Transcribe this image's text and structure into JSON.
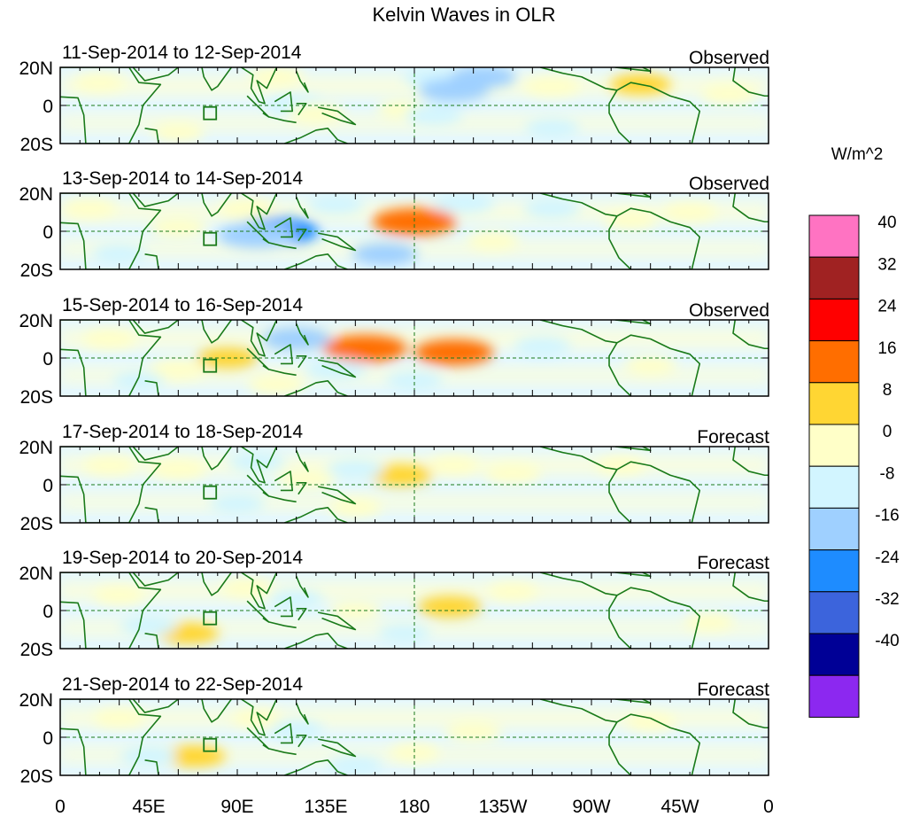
{
  "title": "Kelvin Waves in OLR",
  "units_label": "W/m^2",
  "x_tick_labels": [
    "0",
    "45E",
    "90E",
    "135E",
    "180",
    "135W",
    "90W",
    "45W",
    "0"
  ],
  "y_tick_labels": [
    "20N",
    "0",
    "20S"
  ],
  "panels": [
    {
      "date_range": "11-Sep-2014 to 12-Sep-2014",
      "kind": "Observed",
      "anomalies": [
        {
          "lon": 110,
          "lat": 15,
          "value": 5
        },
        {
          "lon": 120,
          "lat": 0,
          "value": -8
        },
        {
          "lon": 190,
          "lat": 15,
          "value": -8
        },
        {
          "lon": 200,
          "lat": 8,
          "value": -12
        },
        {
          "lon": 215,
          "lat": 15,
          "value": -10
        },
        {
          "lon": 250,
          "lat": 10,
          "value": 6
        },
        {
          "lon": 295,
          "lat": 11,
          "value": 8
        },
        {
          "lon": 175,
          "lat": -2,
          "value": 5
        },
        {
          "lon": 130,
          "lat": -4,
          "value": 6
        },
        {
          "lon": 190,
          "lat": -5,
          "value": -6
        },
        {
          "lon": 20,
          "lat": 12,
          "value": 4
        },
        {
          "lon": 60,
          "lat": -14,
          "value": 4
        },
        {
          "lon": 340,
          "lat": 6,
          "value": 6
        },
        {
          "lon": 250,
          "lat": -12,
          "value": -5
        }
      ]
    },
    {
      "date_range": "13-Sep-2014 to 14-Sep-2014",
      "kind": "Observed",
      "anomalies": [
        {
          "lon": 180,
          "lat": 5,
          "value": 18
        },
        {
          "lon": 110,
          "lat": 0,
          "value": -18
        },
        {
          "lon": 100,
          "lat": -2,
          "value": -16
        },
        {
          "lon": 140,
          "lat": 14,
          "value": -6
        },
        {
          "lon": 205,
          "lat": 15,
          "value": -8
        },
        {
          "lon": 165,
          "lat": -12,
          "value": -10
        },
        {
          "lon": 95,
          "lat": 12,
          "value": 6
        },
        {
          "lon": 60,
          "lat": 2,
          "value": 6
        },
        {
          "lon": 15,
          "lat": 12,
          "value": 5
        },
        {
          "lon": 250,
          "lat": 12,
          "value": -6
        },
        {
          "lon": 290,
          "lat": 6,
          "value": 5
        },
        {
          "lon": 320,
          "lat": 10,
          "value": 5
        },
        {
          "lon": 220,
          "lat": -5,
          "value": 4
        },
        {
          "lon": 30,
          "lat": -12,
          "value": -5
        }
      ]
    },
    {
      "date_range": "15-Sep-2014 to 16-Sep-2014",
      "kind": "Observed",
      "anomalies": [
        {
          "lon": 155,
          "lat": 5,
          "value": 18
        },
        {
          "lon": 200,
          "lat": 3,
          "value": 16
        },
        {
          "lon": 120,
          "lat": 10,
          "value": -12
        },
        {
          "lon": 140,
          "lat": -6,
          "value": -8
        },
        {
          "lon": 85,
          "lat": 0,
          "value": 8
        },
        {
          "lon": 60,
          "lat": -6,
          "value": 6
        },
        {
          "lon": 110,
          "lat": -14,
          "value": 6
        },
        {
          "lon": 25,
          "lat": 10,
          "value": 5
        },
        {
          "lon": 245,
          "lat": 6,
          "value": -6
        },
        {
          "lon": 300,
          "lat": -4,
          "value": 4
        },
        {
          "lon": 180,
          "lat": -12,
          "value": -6
        },
        {
          "lon": 40,
          "lat": -12,
          "value": -4
        }
      ]
    },
    {
      "date_range": "17-Sep-2014 to 18-Sep-2014",
      "kind": "Forecast",
      "anomalies": [
        {
          "lon": 173,
          "lat": 5,
          "value": 9
        },
        {
          "lon": 125,
          "lat": 3,
          "value": 7
        },
        {
          "lon": 60,
          "lat": 8,
          "value": 6
        },
        {
          "lon": 100,
          "lat": 12,
          "value": -6
        },
        {
          "lon": 150,
          "lat": 8,
          "value": -6
        },
        {
          "lon": 230,
          "lat": 6,
          "value": 6
        },
        {
          "lon": 200,
          "lat": 10,
          "value": 4
        },
        {
          "lon": 90,
          "lat": -10,
          "value": -5
        },
        {
          "lon": 25,
          "lat": 10,
          "value": 4
        },
        {
          "lon": 150,
          "lat": -12,
          "value": 4
        },
        {
          "lon": 285,
          "lat": 10,
          "value": 3
        }
      ]
    },
    {
      "date_range": "19-Sep-2014 to 20-Sep-2014",
      "kind": "Forecast",
      "anomalies": [
        {
          "lon": 198,
          "lat": 2,
          "value": 9
        },
        {
          "lon": 65,
          "lat": -12,
          "value": 8
        },
        {
          "lon": 45,
          "lat": -8,
          "value": -6
        },
        {
          "lon": 120,
          "lat": 6,
          "value": -5
        },
        {
          "lon": 150,
          "lat": 0,
          "value": 4
        },
        {
          "lon": 30,
          "lat": 8,
          "value": 4
        },
        {
          "lon": 95,
          "lat": 12,
          "value": 4
        },
        {
          "lon": 230,
          "lat": 10,
          "value": 3
        },
        {
          "lon": 330,
          "lat": -6,
          "value": 3
        },
        {
          "lon": 175,
          "lat": -12,
          "value": -4
        }
      ]
    },
    {
      "date_range": "21-Sep-2014 to 22-Sep-2014",
      "kind": "Forecast",
      "anomalies": [
        {
          "lon": 68,
          "lat": -10,
          "value": 9
        },
        {
          "lon": 210,
          "lat": 3,
          "value": 6
        },
        {
          "lon": 45,
          "lat": -10,
          "value": -6
        },
        {
          "lon": 120,
          "lat": 4,
          "value": -5
        },
        {
          "lon": 150,
          "lat": -15,
          "value": -5
        },
        {
          "lon": 30,
          "lat": 10,
          "value": 4
        },
        {
          "lon": 100,
          "lat": 10,
          "value": 3
        },
        {
          "lon": 180,
          "lat": -8,
          "value": 3
        },
        {
          "lon": 300,
          "lat": 8,
          "value": 3
        }
      ]
    }
  ],
  "colorbar": {
    "labels": [
      "40",
      "32",
      "24",
      "16",
      "8",
      "0",
      "-8",
      "-16",
      "-24",
      "-32",
      "-40"
    ],
    "colors": [
      "#ff73c2",
      "#a02222",
      "#ff0000",
      "#ff6e00",
      "#ffd633",
      "#ffffc8",
      "#d2f5ff",
      "#9fd0ff",
      "#1e8cff",
      "#3c64dc",
      "#000096",
      "#8c28f0"
    ]
  },
  "chart_data": {
    "type": "heatmap",
    "title": "Kelvin Waves in OLR",
    "variable": "OLR anomaly",
    "units": "W/m^2",
    "x_range": [
      0,
      360
    ],
    "y_range": [
      -20,
      20
    ],
    "x_ticks": [
      0,
      45,
      90,
      135,
      180,
      225,
      270,
      315,
      360
    ],
    "y_ticks": [
      20,
      0,
      -20
    ],
    "levels": [
      -40,
      -32,
      -24,
      -16,
      -8,
      0,
      8,
      16,
      24,
      32,
      40
    ]
  }
}
